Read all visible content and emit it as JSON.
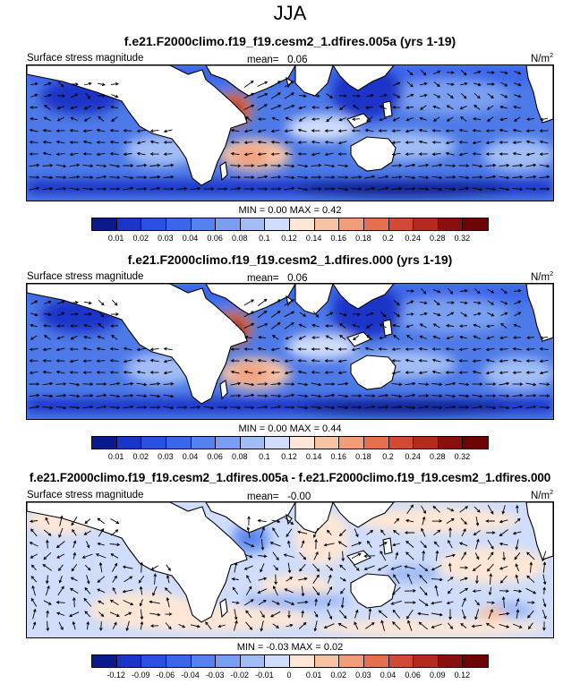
{
  "title": "JJA",
  "units": "N/m",
  "units_sup": "2",
  "variable": "Surface stress magnitude",
  "panels": [
    {
      "id": "test",
      "title": "f.e21.F2000climo.f19_f19.cesm2_1.dfires.005a (yrs 1-19)",
      "mean_label": "mean=",
      "mean_value": "0.06",
      "minmax_text": "MIN =   0.00 MAX =  0.42"
    },
    {
      "id": "reference",
      "title": "f.e21.F2000climo.f19_f19.cesm2_1.dfires.000 (yrs 1-19)",
      "mean_label": "mean=",
      "mean_value": "0.06",
      "minmax_text": "MIN =   0.00 MAX =  0.44"
    },
    {
      "id": "difference",
      "title": "f.e21.F2000climo.f19_f19.cesm2_1.dfires.005a - f.e21.F2000climo.f19_f19.cesm2_1.dfires.000",
      "mean_label": "mean=",
      "mean_value": "-0.00",
      "minmax_text": "MIN =  -0.03 MAX =  0.02"
    }
  ],
  "colorbars": {
    "absolute": {
      "ticks": [
        "0.01",
        "0.02",
        "0.03",
        "0.04",
        "0.06",
        "0.08",
        "0.1",
        "0.12",
        "0.14",
        "0.16",
        "0.18",
        "0.2",
        "0.24",
        "0.28",
        "0.32"
      ],
      "colors": [
        "#0a1a8c",
        "#1b35c8",
        "#2950e0",
        "#3a66ea",
        "#5582ee",
        "#7a9ff2",
        "#a2bdf6",
        "#cfdcfa",
        "#fde6d6",
        "#f8c3a3",
        "#f19d78",
        "#e5704f",
        "#d24a33",
        "#b42a1f",
        "#8a1010",
        "#6b0505"
      ]
    },
    "difference": {
      "ticks": [
        "-0.12",
        "-0.09",
        "-0.06",
        "-0.04",
        "-0.03",
        "-0.02",
        "-0.01",
        "0",
        "0.01",
        "0.02",
        "0.03",
        "0.04",
        "0.06",
        "0.09",
        "0.12"
      ],
      "colors": [
        "#0a1a8c",
        "#1b35c8",
        "#2950e0",
        "#3a66ea",
        "#5582ee",
        "#7a9ff2",
        "#a2bdf6",
        "#cfdcfa",
        "#fde6d6",
        "#f8c3a3",
        "#f19d78",
        "#e5704f",
        "#d24a33",
        "#b42a1f",
        "#8a1010",
        "#6b0505"
      ]
    }
  }
}
